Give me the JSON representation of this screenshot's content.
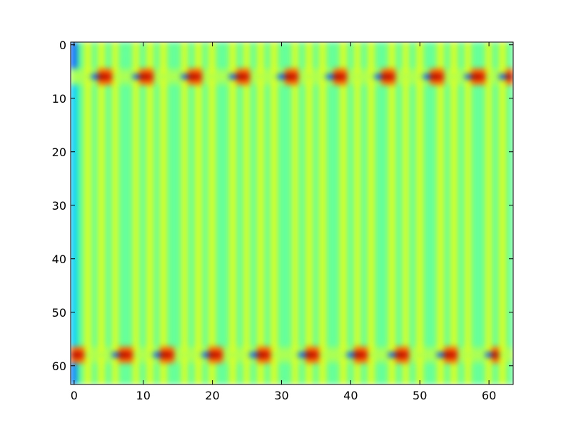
{
  "chart_data": {
    "type": "heatmap",
    "colormap": "jet",
    "grid": false,
    "title": "",
    "xlabel": "",
    "ylabel": "",
    "rows": 64,
    "cols": 64,
    "xlim": [
      -0.5,
      63.5
    ],
    "ylim": [
      63.5,
      -0.5
    ],
    "xticks": [
      0,
      10,
      20,
      30,
      40,
      50,
      60
    ],
    "yticks": [
      0,
      10,
      20,
      30,
      40,
      50,
      60
    ],
    "xtick_labels": [
      "0",
      "10",
      "20",
      "30",
      "40",
      "50",
      "60"
    ],
    "ytick_labels": [
      "0",
      "10",
      "20",
      "30",
      "40",
      "50",
      "60"
    ],
    "value_range": [
      -1,
      1
    ],
    "background_value": -0.05,
    "bright_rows": [
      6,
      58
    ],
    "bright_row_columns": {
      "6": [
        4,
        5,
        10,
        11,
        17,
        18,
        24,
        25,
        31,
        32,
        38,
        39,
        45,
        46,
        52,
        53,
        58,
        59,
        63
      ],
      "58": [
        0,
        1,
        7,
        8,
        13,
        14,
        20,
        21,
        27,
        28,
        34,
        35,
        41,
        42,
        47,
        48,
        54,
        55,
        61
      ]
    },
    "vertical_stripe_columns": [
      2,
      4,
      6,
      9,
      11,
      13,
      16,
      18,
      20,
      23,
      25,
      27,
      29,
      32,
      34,
      36,
      39,
      41,
      43,
      46,
      48,
      50,
      53,
      55,
      57,
      60,
      62
    ],
    "left_edge_columns": [
      0
    ]
  }
}
